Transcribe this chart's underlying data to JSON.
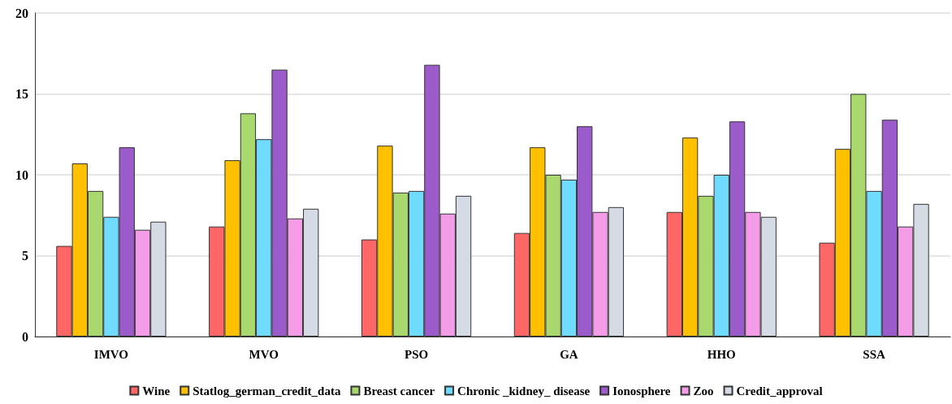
{
  "chart_data": {
    "type": "bar",
    "categories": [
      "IMVO",
      "MVO",
      "PSO",
      "GA",
      "HHO",
      "SSA"
    ],
    "series": [
      {
        "name": "Wine",
        "color": "#ff6666",
        "values": [
          5.6,
          6.8,
          6.0,
          6.4,
          7.7,
          5.8
        ]
      },
      {
        "name": "Statlog_german_credit_data",
        "color": "#ffc000",
        "values": [
          10.7,
          10.9,
          11.8,
          11.7,
          12.3,
          11.6
        ]
      },
      {
        "name": "Breast cancer",
        "color": "#a9d86e",
        "values": [
          9.0,
          13.8,
          8.9,
          10.0,
          8.7,
          15.0
        ]
      },
      {
        "name": "Chronic _kidney_ disease",
        "color": "#6fdbff",
        "values": [
          7.4,
          12.2,
          9.0,
          9.7,
          10.0,
          9.0
        ]
      },
      {
        "name": "Ionosphere",
        "color": "#9b5bcb",
        "values": [
          11.7,
          16.5,
          16.8,
          13.0,
          13.3,
          13.4
        ]
      },
      {
        "name": "Zoo",
        "color": "#f59ce8",
        "values": [
          6.6,
          7.3,
          7.6,
          7.7,
          7.7,
          6.8
        ]
      },
      {
        "name": "Credit_approval",
        "color": "#d5dbe5",
        "values": [
          7.1,
          7.9,
          8.7,
          8.0,
          7.4,
          8.2
        ]
      }
    ],
    "ylim": [
      0,
      20
    ],
    "yticks": [
      0,
      5,
      10,
      15,
      20
    ],
    "grid": "y",
    "legend": "bottom"
  }
}
